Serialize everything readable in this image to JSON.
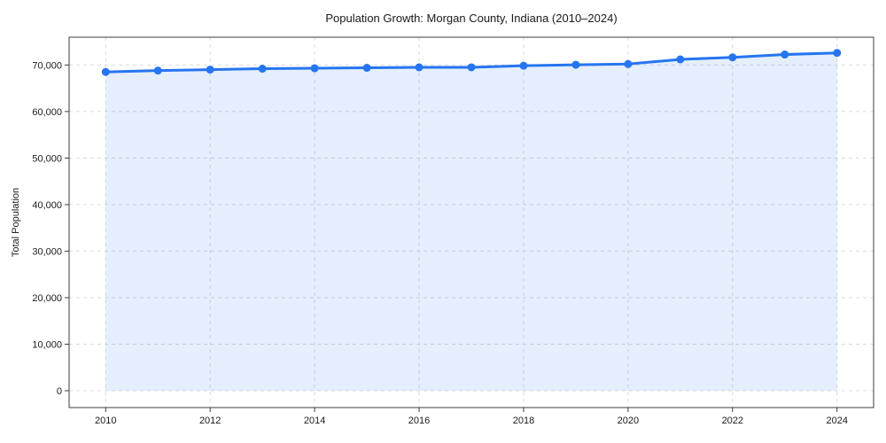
{
  "figure": {
    "title": "Population Growth: Morgan County, Indiana (2010–2024)"
  },
  "chart_data": {
    "type": "area",
    "title": "Population Growth: Morgan County, Indiana (2010–2024)",
    "xlabel": "",
    "ylabel": "Total Population",
    "x": [
      2010,
      2011,
      2012,
      2013,
      2014,
      2015,
      2016,
      2017,
      2018,
      2019,
      2020,
      2021,
      2022,
      2023,
      2024
    ],
    "series": [
      {
        "name": "Total Population",
        "values": [
          68500,
          68800,
          69000,
          69200,
          69300,
          69400,
          69500,
          69500,
          69850,
          70050,
          70200,
          71200,
          71650,
          72250,
          72600
        ]
      }
    ],
    "xticks": [
      2010,
      2012,
      2014,
      2016,
      2018,
      2020,
      2022,
      2024
    ],
    "yticks": [
      0,
      10000,
      20000,
      30000,
      40000,
      50000,
      60000,
      70000
    ],
    "xlim": [
      2009.3,
      2024.7
    ],
    "ylim": [
      -3618,
      75970
    ],
    "grid": {
      "visible": true,
      "style": "dashed",
      "axes": "both"
    },
    "legend": "none",
    "markers": true,
    "fill_baseline": 0,
    "colors": {
      "line": "#2575f0",
      "marker": "#2575f0",
      "fill": "rgba(37,117,240,0.12)",
      "grid": "#dcdcdc",
      "spine": "#3d3d3d",
      "text": "#1a1a1a",
      "background": "#ffffff"
    }
  }
}
